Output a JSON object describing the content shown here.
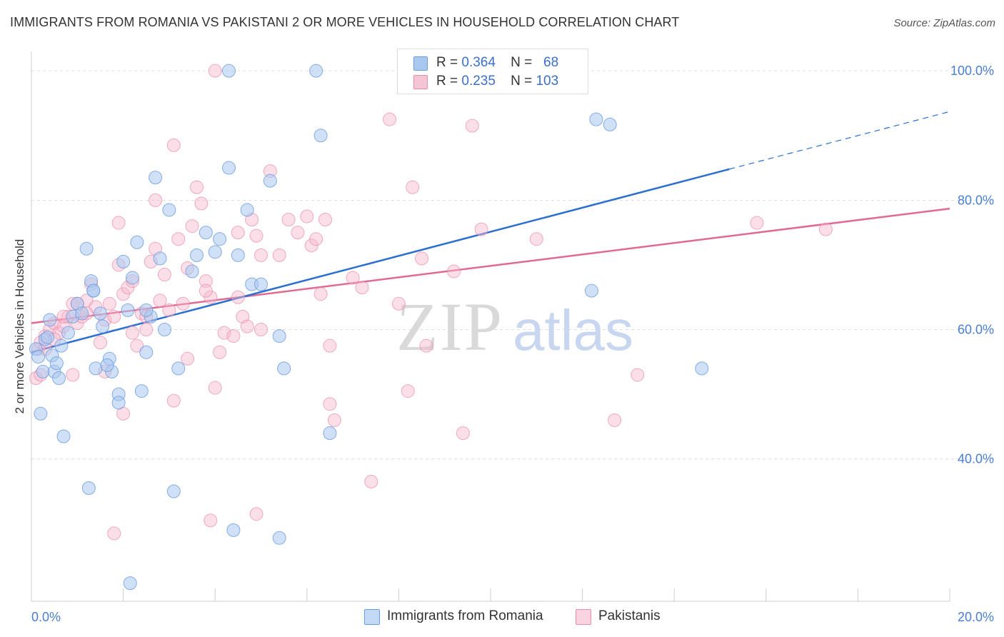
{
  "header": {
    "title": "IMMIGRANTS FROM ROMANIA VS PAKISTANI 2 OR MORE VEHICLES IN HOUSEHOLD CORRELATION CHART",
    "source": "Source: ZipAtlas.com"
  },
  "legend": {
    "romania": {
      "r_label": "R =",
      "r_value": "0.364",
      "n_label": "N =",
      "n_value": "68"
    },
    "pakistani": {
      "r_label": "R =",
      "r_value": "0.235",
      "n_label": "N =",
      "n_value": "103"
    }
  },
  "bottom_legend": {
    "romania": "Immigrants from Romania",
    "pakistani": "Pakistanis"
  },
  "watermark": {
    "zip": "ZIP",
    "atlas": "atlas"
  },
  "colors": {
    "romania_fill": "#a9c8f0",
    "romania_stroke": "#6a9be0",
    "romania_line": "#2b6fd0",
    "pakistani_fill": "#f6b8cc",
    "pakistani_stroke": "#e98aa9",
    "pakistani_line": "#e06a94",
    "tick_text": "#4a7fd0",
    "grid": "#dddddd"
  },
  "chart_data": {
    "type": "scatter",
    "title": "IMMIGRANTS FROM ROMANIA VS PAKISTANI 2 OR MORE VEHICLES IN HOUSEHOLD CORRELATION CHART",
    "xlabel": "",
    "ylabel": "2 or more Vehicles in Household",
    "xlim": [
      0,
      20
    ],
    "ylim": [
      18,
      103
    ],
    "x_tick_labels": [
      "0.0%",
      "20.0%"
    ],
    "y_ticks": [
      40,
      60,
      80,
      100
    ],
    "y_tick_labels": [
      "40.0%",
      "60.0%",
      "80.0%",
      "100.0%"
    ],
    "grid": true,
    "legend_position": "top-center",
    "series": [
      {
        "name": "Immigrants from Romania",
        "points": [
          [
            0.1,
            57.0
          ],
          [
            0.15,
            55.8
          ],
          [
            0.2,
            47.0
          ],
          [
            0.25,
            53.5
          ],
          [
            0.3,
            58.5
          ],
          [
            0.35,
            58.8
          ],
          [
            0.4,
            61.5
          ],
          [
            0.45,
            56.0
          ],
          [
            0.5,
            53.5
          ],
          [
            0.55,
            54.8
          ],
          [
            0.6,
            52.5
          ],
          [
            0.65,
            57.5
          ],
          [
            0.7,
            43.5
          ],
          [
            0.8,
            59.5
          ],
          [
            0.9,
            62.0
          ],
          [
            1.0,
            64.0
          ],
          [
            1.1,
            62.5
          ],
          [
            1.2,
            72.5
          ],
          [
            1.3,
            67.5
          ],
          [
            1.35,
            66.0
          ],
          [
            1.4,
            54.0
          ],
          [
            1.5,
            62.5
          ],
          [
            1.55,
            60.5
          ],
          [
            1.7,
            55.5
          ],
          [
            1.75,
            53.5
          ],
          [
            1.9,
            50.0
          ],
          [
            2.0,
            70.5
          ],
          [
            2.1,
            63.0
          ],
          [
            2.2,
            68.0
          ],
          [
            2.3,
            73.5
          ],
          [
            2.4,
            50.5
          ],
          [
            2.5,
            56.5
          ],
          [
            2.6,
            62.0
          ],
          [
            2.8,
            71.0
          ],
          [
            2.9,
            60.0
          ],
          [
            3.0,
            78.5
          ],
          [
            3.2,
            54.0
          ],
          [
            3.5,
            69.0
          ],
          [
            3.6,
            71.5
          ],
          [
            3.8,
            75.0
          ],
          [
            4.0,
            72.0
          ],
          [
            4.1,
            74.0
          ],
          [
            4.3,
            85.0
          ],
          [
            4.5,
            71.5
          ],
          [
            4.7,
            78.5
          ],
          [
            4.8,
            67.0
          ],
          [
            5.0,
            67.0
          ],
          [
            5.2,
            83.0
          ],
          [
            5.4,
            59.0
          ],
          [
            5.5,
            54.0
          ],
          [
            6.3,
            90.0
          ],
          [
            6.5,
            44.0
          ],
          [
            1.25,
            35.5
          ],
          [
            3.1,
            35.0
          ],
          [
            4.4,
            29.0
          ],
          [
            5.4,
            27.8
          ],
          [
            2.15,
            20.8
          ],
          [
            6.2,
            100.0
          ],
          [
            12.3,
            92.5
          ],
          [
            12.6,
            91.7
          ],
          [
            12.2,
            66.0
          ],
          [
            14.6,
            54.0
          ],
          [
            2.7,
            83.5
          ],
          [
            4.3,
            100.0
          ],
          [
            1.9,
            48.7
          ],
          [
            1.65,
            54.5
          ],
          [
            1.35,
            66.0
          ],
          [
            2.5,
            63.0
          ]
        ],
        "trend": {
          "x": [
            0,
            15.2
          ],
          "y": [
            56.5,
            84.8
          ],
          "dashed_extension": {
            "x": [
              15.2,
              20
            ],
            "y": [
              84.8,
              93.7
            ]
          }
        }
      },
      {
        "name": "Pakistanis",
        "points": [
          [
            0.1,
            52.5
          ],
          [
            0.15,
            57.0
          ],
          [
            0.2,
            58.0
          ],
          [
            0.3,
            59.0
          ],
          [
            0.4,
            60.0
          ],
          [
            0.5,
            61.0
          ],
          [
            0.6,
            59.5
          ],
          [
            0.7,
            60.5
          ],
          [
            0.8,
            62.0
          ],
          [
            0.9,
            64.0
          ],
          [
            1.0,
            61.0
          ],
          [
            1.1,
            62.0
          ],
          [
            1.2,
            64.5
          ],
          [
            1.3,
            67.0
          ],
          [
            1.4,
            63.5
          ],
          [
            1.5,
            58.0
          ],
          [
            1.6,
            61.5
          ],
          [
            1.7,
            64.0
          ],
          [
            1.8,
            62.0
          ],
          [
            1.9,
            76.5
          ],
          [
            2.0,
            65.5
          ],
          [
            2.1,
            66.5
          ],
          [
            2.2,
            59.5
          ],
          [
            2.3,
            57.5
          ],
          [
            2.4,
            62.5
          ],
          [
            2.5,
            60.0
          ],
          [
            2.6,
            70.5
          ],
          [
            2.7,
            80.0
          ],
          [
            2.8,
            64.5
          ],
          [
            2.9,
            68.5
          ],
          [
            3.0,
            63.0
          ],
          [
            3.1,
            88.5
          ],
          [
            3.2,
            74.0
          ],
          [
            3.3,
            64.0
          ],
          [
            3.4,
            69.5
          ],
          [
            3.5,
            76.0
          ],
          [
            3.6,
            82.0
          ],
          [
            3.7,
            79.5
          ],
          [
            3.8,
            67.5
          ],
          [
            3.9,
            65.0
          ],
          [
            4.0,
            51.0
          ],
          [
            4.1,
            56.5
          ],
          [
            4.2,
            59.5
          ],
          [
            4.4,
            59.0
          ],
          [
            4.5,
            75.0
          ],
          [
            4.6,
            62.0
          ],
          [
            4.7,
            60.5
          ],
          [
            4.8,
            77.0
          ],
          [
            4.9,
            74.5
          ],
          [
            5.0,
            71.5
          ],
          [
            5.2,
            84.5
          ],
          [
            5.4,
            71.5
          ],
          [
            5.6,
            77.0
          ],
          [
            5.8,
            75.0
          ],
          [
            6.0,
            77.5
          ],
          [
            6.1,
            73.0
          ],
          [
            6.2,
            74.0
          ],
          [
            6.3,
            65.5
          ],
          [
            6.4,
            77.0
          ],
          [
            6.5,
            57.5
          ],
          [
            7.0,
            68.0
          ],
          [
            7.2,
            66.5
          ],
          [
            7.8,
            92.5
          ],
          [
            8.0,
            64.0
          ],
          [
            8.2,
            50.5
          ],
          [
            8.3,
            82.0
          ],
          [
            8.5,
            71.0
          ],
          [
            8.6,
            57.5
          ],
          [
            9.2,
            69.0
          ],
          [
            9.6,
            91.5
          ],
          [
            9.8,
            75.5
          ],
          [
            11.0,
            74.0
          ],
          [
            11.8,
            100.0
          ],
          [
            12.7,
            46.0
          ],
          [
            13.2,
            53.0
          ],
          [
            15.8,
            76.5
          ],
          [
            17.3,
            75.5
          ],
          [
            1.8,
            28.5
          ],
          [
            3.9,
            30.5
          ],
          [
            4.9,
            31.5
          ],
          [
            6.6,
            46.0
          ],
          [
            7.4,
            36.5
          ],
          [
            9.4,
            44.0
          ],
          [
            6.5,
            48.5
          ],
          [
            3.1,
            49.0
          ],
          [
            2.0,
            47.0
          ],
          [
            4.0,
            100.0
          ],
          [
            0.9,
            53.0
          ],
          [
            1.6,
            53.5
          ],
          [
            2.5,
            62.0
          ],
          [
            3.4,
            55.5
          ],
          [
            0.3,
            57.0
          ],
          [
            0.5,
            58.5
          ],
          [
            0.2,
            53.0
          ],
          [
            1.2,
            62.5
          ],
          [
            5.0,
            60.0
          ],
          [
            4.5,
            65.0
          ],
          [
            2.7,
            72.5
          ],
          [
            3.8,
            66.0
          ],
          [
            1.9,
            70.0
          ],
          [
            0.7,
            62.0
          ],
          [
            1.0,
            64.0
          ],
          [
            2.2,
            67.5
          ]
        ],
        "trend": {
          "x": [
            0,
            20
          ],
          "y": [
            61.0,
            78.7
          ]
        }
      }
    ]
  }
}
